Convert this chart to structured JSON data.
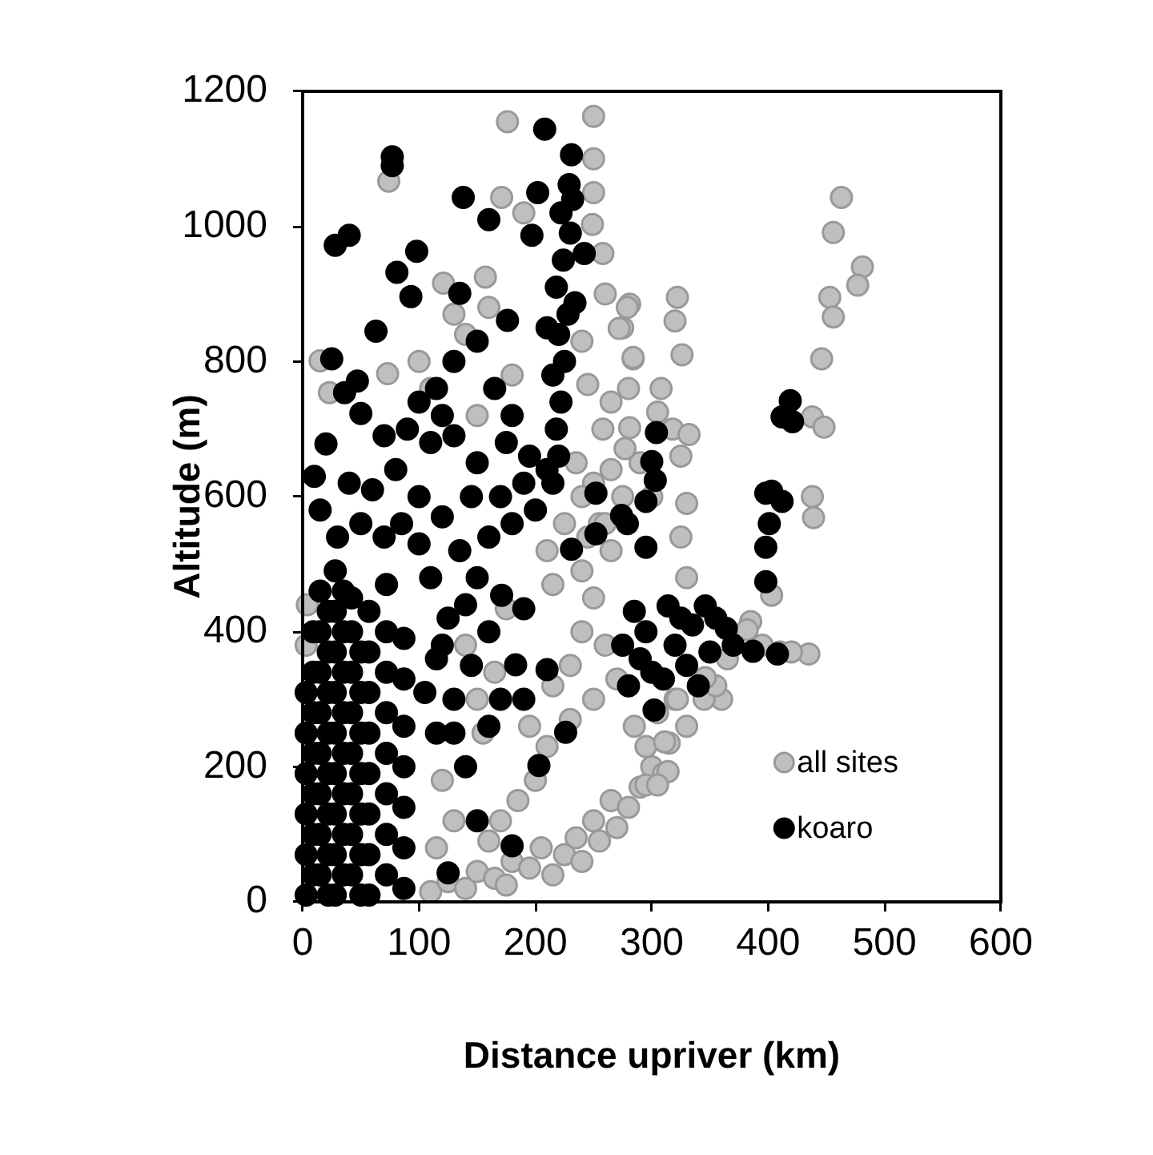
{
  "chart_data": {
    "type": "scatter",
    "xlabel": "Distance upriver (km)",
    "ylabel": "Altitude (m)",
    "xlim": [
      0,
      600
    ],
    "ylim": [
      0,
      1200
    ],
    "xticks": [
      0,
      100,
      200,
      300,
      400,
      500,
      600
    ],
    "yticks": [
      0,
      200,
      400,
      600,
      800,
      1000,
      1200
    ],
    "legend": "bottom right",
    "marker": "circle",
    "series": [
      {
        "name": "all sites",
        "color": "#bfbfbf",
        "x": [
          110,
          125,
          140,
          150,
          165,
          180,
          175,
          195,
          205,
          215,
          225,
          235,
          240,
          250,
          255,
          265,
          270,
          280,
          290,
          300,
          295,
          310,
          315,
          285,
          305,
          320,
          330,
          360,
          345,
          355,
          365,
          385,
          395,
          410,
          435,
          403,
          330,
          325,
          330,
          325,
          318,
          305,
          308,
          320,
          322,
          326,
          332,
          281,
          284,
          281,
          275,
          280,
          290,
          300,
          275,
          265,
          250,
          240,
          230,
          260,
          270,
          250,
          230,
          210,
          200,
          185,
          170,
          160,
          195,
          215,
          240,
          255,
          265,
          258,
          176,
          250,
          250,
          250,
          249,
          258,
          279,
          272,
          284,
          245,
          277,
          157,
          121,
          171,
          190,
          74,
          15,
          23,
          73,
          100,
          130,
          140,
          160,
          110,
          180,
          150,
          240,
          260,
          265,
          250,
          463,
          456,
          481,
          477,
          453,
          456,
          446,
          438,
          448,
          438,
          439,
          382,
          420,
          346,
          322,
          311,
          314,
          295,
          305,
          4,
          3,
          150,
          165,
          140,
          175,
          155,
          120,
          130,
          115,
          210,
          225,
          240,
          235,
          260,
          215,
          245
        ],
        "values": [
          15,
          30,
          20,
          45,
          35,
          60,
          25,
          50,
          80,
          40,
          70,
          95,
          60,
          120,
          90,
          150,
          110,
          140,
          170,
          200,
          230,
          190,
          235,
          260,
          280,
          300,
          260,
          300,
          300,
          320,
          360,
          415,
          380,
          370,
          367,
          454,
          480,
          540,
          590,
          660,
          700,
          725,
          760,
          860,
          895,
          810,
          692,
          885,
          804,
          702,
          850,
          760,
          650,
          600,
          600,
          520,
          450,
          400,
          350,
          380,
          330,
          300,
          270,
          230,
          180,
          150,
          120,
          90,
          260,
          320,
          490,
          560,
          640,
          700,
          1155,
          1163,
          1100,
          1050,
          1003,
          960,
          880,
          849,
          806,
          766,
          671,
          925,
          916,
          1043,
          1020,
          1067,
          801,
          754,
          782,
          800,
          870,
          840,
          880,
          760,
          780,
          720,
          830,
          900,
          740,
          620,
          1043,
          991,
          940,
          913,
          895,
          866,
          804,
          718,
          703,
          600,
          569,
          403,
          370,
          332,
          300,
          237,
          193,
          173,
          173,
          440,
          380,
          300,
          340,
          380,
          434,
          250,
          180,
          120,
          80,
          520,
          560,
          600,
          650,
          560,
          470,
          540
        ]
      },
      {
        "name": "koaro",
        "color": "#000000",
        "x": [
          3,
          3,
          3,
          3,
          3,
          3,
          15,
          15,
          15,
          15,
          15,
          15,
          15,
          15,
          28,
          28,
          28,
          28,
          28,
          28,
          28,
          28,
          28,
          42,
          42,
          42,
          42,
          42,
          42,
          42,
          42,
          57,
          57,
          57,
          57,
          57,
          57,
          57,
          57,
          72,
          72,
          72,
          72,
          72,
          72,
          72,
          72,
          87,
          87,
          87,
          87,
          87,
          87,
          87,
          105,
          115,
          125,
          110,
          100,
          85,
          70,
          50,
          30,
          15,
          10,
          20,
          40,
          60,
          80,
          100,
          120,
          135,
          150,
          160,
          145,
          170,
          180,
          190,
          200,
          210,
          195,
          175,
          150,
          130,
          110,
          90,
          70,
          50,
          36,
          47,
          25,
          63,
          81,
          93,
          98,
          28,
          40,
          77,
          77,
          138,
          160,
          202,
          208,
          231,
          229,
          197,
          135,
          176,
          234,
          242,
          115,
          130,
          150,
          165,
          180,
          100,
          120,
          115,
          130,
          145,
          160,
          120,
          140,
          215,
          220,
          218,
          222,
          215,
          225,
          220,
          228,
          218,
          224,
          230,
          222,
          232,
          210,
          125,
          180,
          150,
          140,
          130,
          160,
          170,
          203,
          226,
          183,
          210,
          190,
          171,
          231,
          252,
          252,
          274,
          190,
          280,
          290,
          300,
          302,
          310,
          320,
          330,
          340,
          350,
          314,
          346,
          364,
          387,
          408,
          370,
          355,
          335,
          295,
          285,
          325,
          275,
          295,
          295,
          279,
          304,
          300,
          303,
          398,
          412,
          401,
          398,
          398,
          419,
          412,
          421,
          403,
          9,
          9,
          9,
          9,
          9,
          9,
          9,
          22,
          22,
          22,
          22,
          22,
          22,
          22,
          22,
          35,
          35,
          35,
          35,
          35,
          35,
          35,
          35,
          50,
          50,
          50,
          50,
          50,
          50,
          50
        ],
        "values": [
          10,
          70,
          130,
          190,
          250,
          310,
          40,
          100,
          160,
          220,
          280,
          340,
          400,
          460,
          10,
          70,
          130,
          190,
          250,
          310,
          370,
          430,
          490,
          40,
          100,
          160,
          220,
          280,
          340,
          400,
          450,
          10,
          70,
          130,
          190,
          250,
          310,
          370,
          430,
          40,
          100,
          160,
          220,
          280,
          340,
          400,
          470,
          20,
          80,
          140,
          200,
          260,
          330,
          390,
          310,
          360,
          420,
          480,
          530,
          560,
          540,
          560,
          540,
          580,
          630,
          678,
          620,
          610,
          640,
          600,
          570,
          520,
          480,
          540,
          600,
          600,
          560,
          620,
          580,
          640,
          660,
          680,
          650,
          690,
          680,
          700,
          690,
          723,
          754,
          771,
          804,
          845,
          932,
          896,
          963,
          972,
          987,
          1103,
          1090,
          1043,
          1010,
          1050,
          1144,
          1106,
          1062,
          987,
          901,
          861,
          887,
          960,
          760,
          800,
          830,
          760,
          720,
          740,
          720,
          250,
          300,
          350,
          400,
          380,
          440,
          620,
          660,
          700,
          740,
          780,
          800,
          840,
          870,
          910,
          950,
          990,
          1020,
          1040,
          850,
          43,
          83,
          120,
          200,
          250,
          260,
          300,
          202,
          251,
          351,
          344,
          300,
          454,
          522,
          545,
          605,
          572,
          434,
          320,
          360,
          340,
          284,
          330,
          380,
          350,
          320,
          370,
          438,
          438,
          405,
          371,
          367,
          380,
          420,
          410,
          400,
          430,
          420,
          380,
          593,
          525,
          560,
          695,
          652,
          624,
          605,
          593,
          560,
          525,
          474,
          742,
          718,
          711,
          608,
          40,
          100,
          160,
          220,
          280,
          340,
          400,
          10,
          70,
          130,
          190,
          250,
          310,
          370,
          430,
          40,
          100,
          160,
          220,
          280,
          340,
          400,
          460,
          10,
          70,
          130,
          190,
          250,
          310,
          370
        ]
      }
    ]
  }
}
